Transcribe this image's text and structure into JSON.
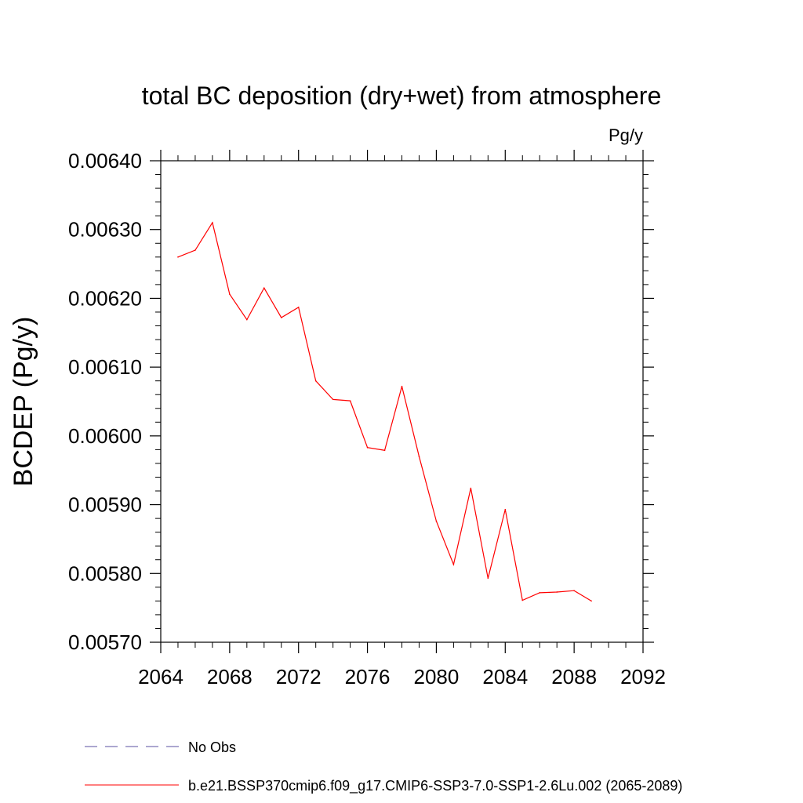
{
  "chart_data": {
    "type": "line",
    "title": "total BC deposition (dry+wet) from atmosphere",
    "units": "Pg/y",
    "ylabel": "BCDEP  (Pg/y)",
    "xlabel": "",
    "xlim": [
      2064,
      2092
    ],
    "ylim": [
      0.0057,
      0.0064
    ],
    "x_ticks": [
      "2064",
      "2068",
      "2072",
      "2076",
      "2080",
      "2084",
      "2088",
      "2092"
    ],
    "y_ticks": [
      "0.00570",
      "0.00580",
      "0.00590",
      "0.00600",
      "0.00610",
      "0.00620",
      "0.00630",
      "0.00640"
    ],
    "grid": false,
    "legend_position": "bottom",
    "series": [
      {
        "name": "No Obs",
        "color": "#5a4fa0",
        "line_style": "dashed",
        "x": [],
        "y": []
      },
      {
        "name": "b.e21.BSSP370cmip6.f09_g17.CMIP6-SSP3-7.0-SSP1-2.6Lu.002 (2065-2089)",
        "color": "#ff0000",
        "line_style": "solid",
        "x": [
          2065,
          2066,
          2067,
          2068,
          2069,
          2070,
          2071,
          2072,
          2073,
          2074,
          2075,
          2076,
          2077,
          2078,
          2079,
          2080,
          2081,
          2082,
          2083,
          2084,
          2085,
          2086,
          2087,
          2088,
          2089
        ],
        "y": [
          0.00626,
          0.00627,
          0.00631,
          0.006206,
          0.006169,
          0.006215,
          0.006172,
          0.006187,
          0.00608,
          0.006053,
          0.006051,
          0.005983,
          0.005979,
          0.006072,
          0.00597,
          0.005876,
          0.005813,
          0.005924,
          0.005793,
          0.005893,
          0.005761,
          0.005772,
          0.005773,
          0.005775,
          0.00576
        ]
      }
    ]
  }
}
